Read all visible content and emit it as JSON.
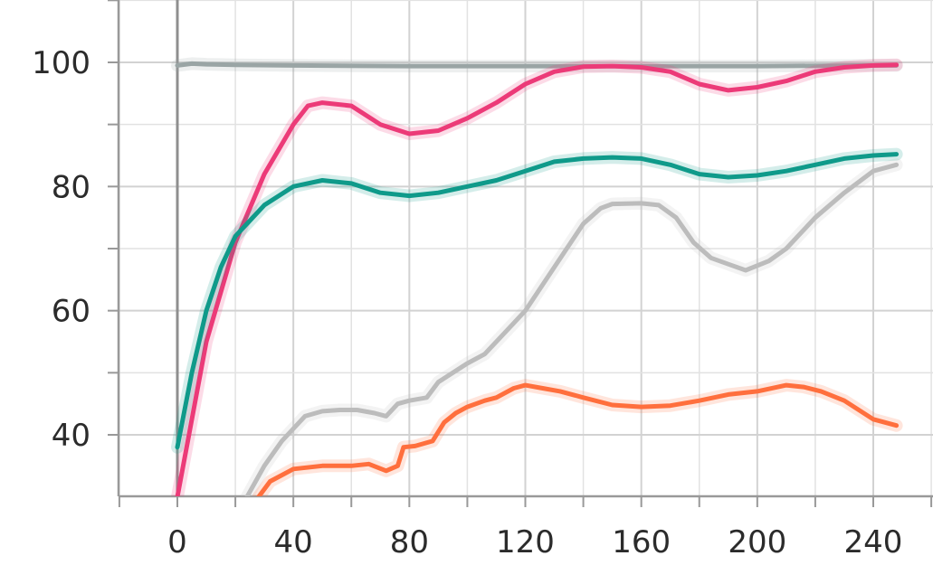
{
  "chart_data": {
    "type": "line",
    "title": "",
    "xlabel": "",
    "ylabel": "",
    "xlim": [
      -50,
      260
    ],
    "ylim": [
      30,
      110
    ],
    "x_ticks": [
      0,
      40,
      80,
      120,
      160,
      200,
      240
    ],
    "y_ticks": [
      40,
      60,
      80,
      100
    ],
    "grid": true,
    "series": [
      {
        "color": "#9aa5a5",
        "x": [
          0,
          5,
          10,
          20,
          40,
          80,
          120,
          160,
          200,
          240,
          248
        ],
        "y": [
          99.5,
          99.8,
          99.7,
          99.6,
          99.5,
          99.4,
          99.4,
          99.4,
          99.4,
          99.5,
          99.5
        ]
      },
      {
        "color": "#ec3a78",
        "x": [
          0,
          10,
          20,
          30,
          40,
          45,
          50,
          60,
          70,
          80,
          90,
          100,
          110,
          120,
          130,
          140,
          150,
          160,
          170,
          180,
          190,
          200,
          210,
          220,
          230,
          240,
          248
        ],
        "y": [
          30,
          55,
          71,
          82,
          90,
          93,
          93.5,
          93,
          90,
          88.5,
          89,
          91,
          93.5,
          96.5,
          98.5,
          99.3,
          99.4,
          99.2,
          98.5,
          96.5,
          95.5,
          96,
          97,
          98.5,
          99.2,
          99.5,
          99.6
        ]
      },
      {
        "color": "#0f9a8a",
        "x": [
          0,
          5,
          10,
          15,
          20,
          30,
          40,
          50,
          60,
          70,
          80,
          90,
          100,
          110,
          120,
          130,
          140,
          150,
          160,
          170,
          180,
          190,
          200,
          210,
          220,
          230,
          240,
          248
        ],
        "y": [
          38,
          50,
          60,
          67,
          72,
          77,
          80,
          81,
          80.5,
          79,
          78.5,
          79,
          80,
          81,
          82.5,
          84,
          84.5,
          84.7,
          84.5,
          83.5,
          82,
          81.5,
          81.8,
          82.5,
          83.5,
          84.5,
          85,
          85.2
        ]
      },
      {
        "color": "#bcbcbc",
        "x": [
          24,
          30,
          36,
          44,
          50,
          56,
          62,
          68,
          72,
          76,
          80,
          86,
          90,
          100,
          106,
          114,
          120,
          130,
          140,
          146,
          150,
          160,
          166,
          172,
          178,
          184,
          190,
          196,
          204,
          210,
          220,
          230,
          240,
          248
        ],
        "y": [
          30,
          35,
          39,
          43,
          43.8,
          44,
          44,
          43.5,
          43,
          45,
          45.5,
          46,
          48.5,
          51.5,
          53,
          57,
          60,
          67,
          74,
          76.5,
          77.2,
          77.3,
          77,
          75,
          71,
          68.5,
          67.5,
          66.5,
          68,
          70,
          75,
          79,
          82.5,
          83.5
        ]
      },
      {
        "color": "#ff6f3d",
        "x": [
          28,
          32,
          40,
          50,
          60,
          66,
          72,
          76,
          78,
          82,
          88,
          92,
          96,
          100,
          106,
          110,
          116,
          120,
          126,
          132,
          140,
          150,
          160,
          170,
          180,
          190,
          200,
          210,
          216,
          222,
          230,
          240,
          248
        ],
        "y": [
          30,
          32.5,
          34.5,
          35,
          35,
          35.3,
          34.2,
          35,
          38,
          38.2,
          39,
          42,
          43.5,
          44.5,
          45.5,
          46,
          47.5,
          48,
          47.5,
          47,
          46,
          44.8,
          44.5,
          44.7,
          45.5,
          46.5,
          47,
          48,
          47.7,
          47,
          45.5,
          42.5,
          41.5
        ]
      }
    ]
  }
}
